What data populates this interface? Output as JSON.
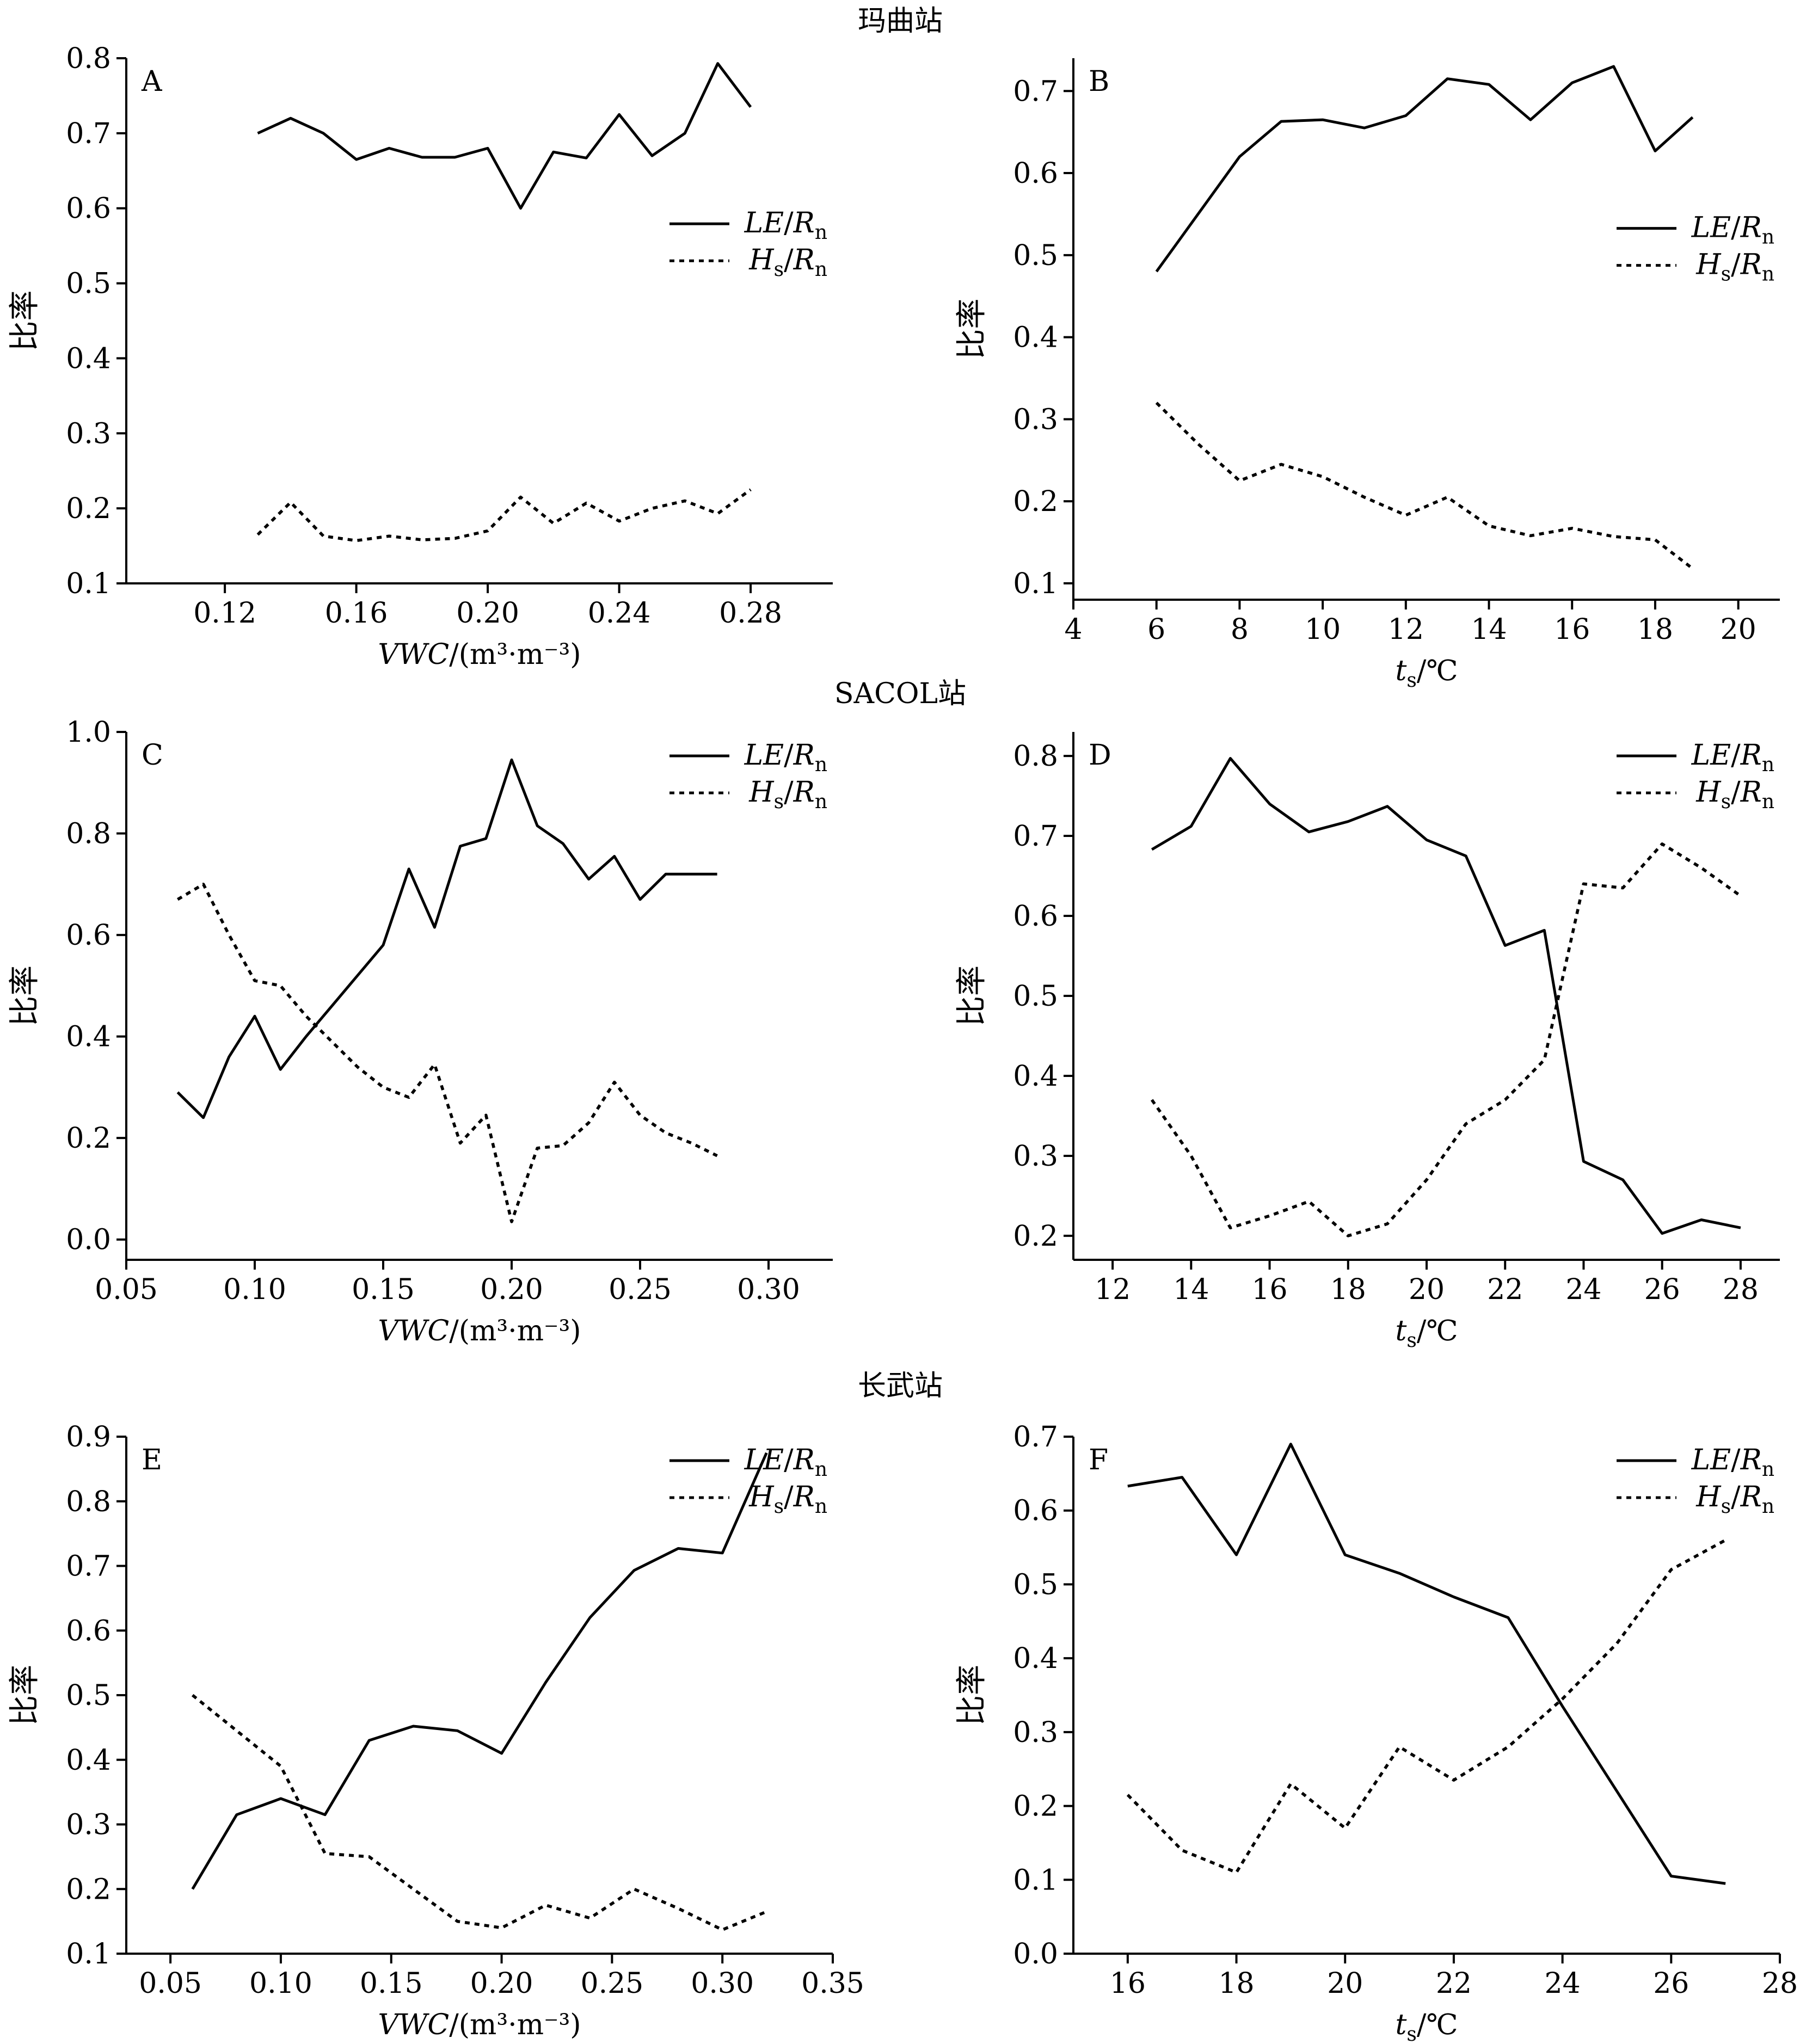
{
  "figure": {
    "station_titles": [
      "玛曲站",
      "SACOL站",
      "长武站"
    ]
  },
  "common": {
    "ylabel": "比率",
    "xlabel_vwc": {
      "main": "VWC",
      "unit": "/(m³·m⁻³)"
    },
    "xlabel_ts": {
      "main": "t",
      "sub": "s",
      "unit": "/℃"
    },
    "legend_le": {
      "a": "LE",
      "sep": "/",
      "b": "R",
      "sub": "n"
    },
    "legend_hs": {
      "a": "H",
      "asub": "s",
      "sep": "/",
      "b": "R",
      "sub": "n"
    },
    "colors": {
      "line": "#000000",
      "axis": "#000000",
      "background": "#ffffff"
    }
  },
  "chart_data": [
    {
      "panel": "A",
      "type": "line",
      "station": "玛曲站",
      "xkind": "vwc",
      "xlim": [
        0.09,
        0.305
      ],
      "ylim": [
        0.1,
        0.8
      ],
      "xticks": [
        0.12,
        0.16,
        0.2,
        0.24,
        0.28
      ],
      "xtick_labels": [
        "0.12",
        "0.16",
        "0.20",
        "0.24",
        "0.28"
      ],
      "yticks": [
        0.1,
        0.2,
        0.3,
        0.4,
        0.5,
        0.6,
        0.7,
        0.8
      ],
      "ytick_labels": [
        "0.1",
        "0.2",
        "0.3",
        "0.4",
        "0.5",
        "0.6",
        "0.7",
        "0.8"
      ],
      "legend_position": "middle-right",
      "grid": false,
      "series": [
        {
          "name": "LE/Rn",
          "style": "solid",
          "x": [
            0.13,
            0.14,
            0.15,
            0.16,
            0.17,
            0.18,
            0.19,
            0.2,
            0.21,
            0.22,
            0.23,
            0.24,
            0.25,
            0.26,
            0.27,
            0.28
          ],
          "y": [
            0.7,
            0.72,
            0.7,
            0.665,
            0.68,
            0.668,
            0.668,
            0.68,
            0.6,
            0.675,
            0.667,
            0.725,
            0.67,
            0.7,
            0.793,
            0.735
          ]
        },
        {
          "name": "Hs/Rn",
          "style": "dotted",
          "x": [
            0.13,
            0.14,
            0.15,
            0.16,
            0.17,
            0.18,
            0.19,
            0.2,
            0.21,
            0.22,
            0.23,
            0.24,
            0.25,
            0.26,
            0.27,
            0.28
          ],
          "y": [
            0.165,
            0.208,
            0.163,
            0.157,
            0.163,
            0.158,
            0.16,
            0.17,
            0.215,
            0.18,
            0.207,
            0.183,
            0.2,
            0.21,
            0.193,
            0.225
          ]
        }
      ]
    },
    {
      "panel": "B",
      "type": "line",
      "station": "玛曲站",
      "xkind": "ts",
      "xlim": [
        4,
        21
      ],
      "ylim": [
        0.08,
        0.74
      ],
      "xticks": [
        4,
        6,
        8,
        10,
        12,
        14,
        16,
        18,
        20
      ],
      "xtick_labels": [
        "4",
        "6",
        "8",
        "10",
        "12",
        "14",
        "16",
        "18",
        "20"
      ],
      "yticks": [
        0.1,
        0.2,
        0.3,
        0.4,
        0.5,
        0.6,
        0.7
      ],
      "ytick_labels": [
        "0.1",
        "0.2",
        "0.3",
        "0.4",
        "0.5",
        "0.6",
        "0.7"
      ],
      "legend_position": "middle-right",
      "grid": false,
      "series": [
        {
          "name": "LE/Rn",
          "style": "solid",
          "x": [
            6,
            7,
            8,
            9,
            10,
            11,
            12,
            13,
            14,
            15,
            16,
            17,
            18,
            18.9
          ],
          "y": [
            0.48,
            0.55,
            0.62,
            0.663,
            0.665,
            0.655,
            0.67,
            0.715,
            0.708,
            0.665,
            0.71,
            0.73,
            0.627,
            0.668
          ]
        },
        {
          "name": "Hs/Rn",
          "style": "dotted",
          "x": [
            6,
            7,
            8,
            9,
            10,
            11,
            12,
            13,
            14,
            15,
            16,
            17,
            18,
            18.9
          ],
          "y": [
            0.32,
            0.27,
            0.225,
            0.245,
            0.23,
            0.205,
            0.183,
            0.205,
            0.17,
            0.158,
            0.167,
            0.157,
            0.153,
            0.118
          ]
        }
      ]
    },
    {
      "panel": "C",
      "type": "line",
      "station": "SACOL站",
      "xkind": "vwc",
      "xlim": [
        0.05,
        0.325
      ],
      "ylim": [
        -0.04,
        1.0
      ],
      "xticks": [
        0.05,
        0.1,
        0.15,
        0.2,
        0.25,
        0.3
      ],
      "xtick_labels": [
        "0.05",
        "0.10",
        "0.15",
        "0.20",
        "0.25",
        "0.30"
      ],
      "yticks": [
        0.0,
        0.2,
        0.4,
        0.6,
        0.8,
        1.0
      ],
      "ytick_labels": [
        "0.0",
        "0.2",
        "0.4",
        "0.6",
        "0.8",
        "1.0"
      ],
      "legend_position": "top-right",
      "grid": false,
      "series": [
        {
          "name": "LE/Rn",
          "style": "solid",
          "x": [
            0.07,
            0.08,
            0.09,
            0.1,
            0.11,
            0.12,
            0.13,
            0.14,
            0.15,
            0.16,
            0.17,
            0.18,
            0.19,
            0.2,
            0.21,
            0.22,
            0.23,
            0.24,
            0.25,
            0.26,
            0.27,
            0.28
          ],
          "y": [
            0.29,
            0.24,
            0.36,
            0.44,
            0.335,
            0.4,
            0.46,
            0.52,
            0.58,
            0.73,
            0.615,
            0.775,
            0.79,
            0.945,
            0.815,
            0.78,
            0.71,
            0.755,
            0.67,
            0.72,
            0.72,
            0.72
          ]
        },
        {
          "name": "Hs/Rn",
          "style": "dotted",
          "x": [
            0.07,
            0.08,
            0.09,
            0.1,
            0.11,
            0.12,
            0.13,
            0.14,
            0.15,
            0.16,
            0.17,
            0.18,
            0.19,
            0.2,
            0.21,
            0.22,
            0.23,
            0.24,
            0.25,
            0.26,
            0.27,
            0.28
          ],
          "y": [
            0.67,
            0.7,
            0.6,
            0.51,
            0.5,
            0.44,
            0.39,
            0.34,
            0.3,
            0.28,
            0.345,
            0.19,
            0.245,
            0.035,
            0.18,
            0.185,
            0.23,
            0.31,
            0.245,
            0.21,
            0.19,
            0.165
          ]
        }
      ]
    },
    {
      "panel": "D",
      "type": "line",
      "station": "SACOL站",
      "xkind": "ts",
      "xlim": [
        11,
        29
      ],
      "ylim": [
        0.17,
        0.83
      ],
      "xticks": [
        12,
        14,
        16,
        18,
        20,
        22,
        24,
        26,
        28
      ],
      "xtick_labels": [
        "12",
        "14",
        "16",
        "18",
        "20",
        "22",
        "24",
        "26",
        "28"
      ],
      "yticks": [
        0.2,
        0.3,
        0.4,
        0.5,
        0.6,
        0.7,
        0.8
      ],
      "ytick_labels": [
        "0.2",
        "0.3",
        "0.4",
        "0.5",
        "0.6",
        "0.7",
        "0.8"
      ],
      "legend_position": "top-right",
      "grid": false,
      "series": [
        {
          "name": "LE/Rn",
          "style": "solid",
          "x": [
            13,
            14,
            15,
            16,
            17,
            18,
            19,
            20,
            21,
            22,
            23,
            24,
            25,
            26,
            27,
            28
          ],
          "y": [
            0.683,
            0.712,
            0.797,
            0.74,
            0.705,
            0.718,
            0.737,
            0.695,
            0.675,
            0.563,
            0.582,
            0.293,
            0.27,
            0.203,
            0.22,
            0.21
          ]
        },
        {
          "name": "Hs/Rn",
          "style": "dotted",
          "x": [
            13,
            14,
            15,
            16,
            17,
            18,
            19,
            20,
            21,
            22,
            23,
            24,
            25,
            26,
            27,
            28
          ],
          "y": [
            0.37,
            0.3,
            0.21,
            0.225,
            0.243,
            0.2,
            0.215,
            0.27,
            0.34,
            0.37,
            0.42,
            0.64,
            0.635,
            0.69,
            0.66,
            0.625
          ]
        }
      ]
    },
    {
      "panel": "E",
      "type": "line",
      "station": "长武站",
      "xkind": "vwc",
      "xlim": [
        0.03,
        0.35
      ],
      "ylim": [
        0.1,
        0.9
      ],
      "xticks": [
        0.05,
        0.1,
        0.15,
        0.2,
        0.25,
        0.3,
        0.35
      ],
      "xtick_labels": [
        "0.05",
        "0.10",
        "0.15",
        "0.20",
        "0.25",
        "0.30",
        "0.35"
      ],
      "yticks": [
        0.1,
        0.2,
        0.3,
        0.4,
        0.5,
        0.6,
        0.7,
        0.8,
        0.9
      ],
      "ytick_labels": [
        "0.1",
        "0.2",
        "0.3",
        "0.4",
        "0.5",
        "0.6",
        "0.7",
        "0.8",
        "0.9"
      ],
      "legend_position": "top-right",
      "grid": false,
      "series": [
        {
          "name": "LE/Rn",
          "style": "solid",
          "x": [
            0.06,
            0.08,
            0.1,
            0.12,
            0.14,
            0.16,
            0.18,
            0.2,
            0.22,
            0.24,
            0.26,
            0.28,
            0.3,
            0.32
          ],
          "y": [
            0.2,
            0.315,
            0.34,
            0.315,
            0.43,
            0.452,
            0.445,
            0.41,
            0.52,
            0.62,
            0.693,
            0.727,
            0.72,
            0.875
          ]
        },
        {
          "name": "Hs/Rn",
          "style": "dotted",
          "x": [
            0.06,
            0.08,
            0.1,
            0.12,
            0.14,
            0.16,
            0.18,
            0.2,
            0.22,
            0.24,
            0.26,
            0.28,
            0.3,
            0.32
          ],
          "y": [
            0.5,
            0.445,
            0.39,
            0.255,
            0.25,
            0.2,
            0.15,
            0.14,
            0.175,
            0.155,
            0.2,
            0.17,
            0.137,
            0.165
          ]
        }
      ]
    },
    {
      "panel": "F",
      "type": "line",
      "station": "长武站",
      "xkind": "ts",
      "xlim": [
        15,
        28
      ],
      "ylim": [
        0.0,
        0.7
      ],
      "xticks": [
        16,
        18,
        20,
        22,
        24,
        26,
        28
      ],
      "xtick_labels": [
        "16",
        "18",
        "20",
        "22",
        "24",
        "26",
        "28"
      ],
      "yticks": [
        0.0,
        0.1,
        0.2,
        0.3,
        0.4,
        0.5,
        0.6,
        0.7
      ],
      "ytick_labels": [
        "0.0",
        "0.1",
        "0.2",
        "0.3",
        "0.4",
        "0.5",
        "0.6",
        "0.7"
      ],
      "legend_position": "top-right",
      "grid": false,
      "series": [
        {
          "name": "LE/Rn",
          "style": "solid",
          "x": [
            16,
            17,
            18,
            19,
            20,
            21,
            22,
            23,
            24,
            25,
            26,
            27
          ],
          "y": [
            0.633,
            0.645,
            0.54,
            0.69,
            0.54,
            0.515,
            0.483,
            0.455,
            0.335,
            0.22,
            0.105,
            0.095
          ]
        },
        {
          "name": "Hs/Rn",
          "style": "dotted",
          "x": [
            16,
            17,
            18,
            19,
            20,
            21,
            22,
            23,
            24,
            25,
            26,
            27
          ],
          "y": [
            0.215,
            0.14,
            0.11,
            0.23,
            0.17,
            0.28,
            0.235,
            0.28,
            0.345,
            0.42,
            0.52,
            0.56
          ]
        }
      ]
    }
  ]
}
